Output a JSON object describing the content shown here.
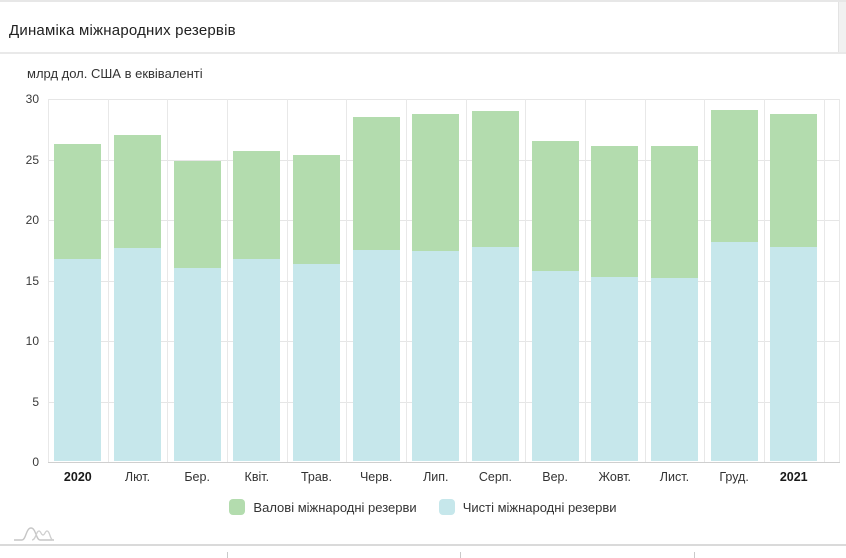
{
  "header": {
    "title": "Динаміка міжнародних резервів"
  },
  "chart_data": {
    "type": "bar",
    "title": "Динаміка міжнародних резервів",
    "ylabel": "млрд дол. США в еквіваленті",
    "xlabel": "",
    "ylim": [
      0,
      30
    ],
    "yticks": [
      30,
      25,
      20,
      15,
      10,
      5,
      0
    ],
    "grid": true,
    "legend_position": "bottom-center",
    "categories": [
      "2020",
      "Лют.",
      "Бер.",
      "Квіт.",
      "Трав.",
      "Черв.",
      "Лип.",
      "Серп.",
      "Вер.",
      "Жовт.",
      "Лист.",
      "Груд.",
      "2021"
    ],
    "bold_categories": [
      "2020",
      "2021"
    ],
    "series": [
      {
        "name": "Валові міжнародні резерви",
        "color": "#b3dcae",
        "values": [
          26.3,
          27.0,
          24.9,
          25.7,
          25.4,
          28.5,
          28.8,
          29.0,
          26.5,
          26.1,
          26.1,
          29.1,
          28.8
        ]
      },
      {
        "name": "Чисті міжнародні резерви",
        "color": "#c6e7eb",
        "values": [
          16.8,
          17.7,
          16.0,
          16.8,
          16.4,
          17.5,
          17.4,
          17.8,
          15.8,
          15.3,
          15.2,
          18.2,
          17.8
        ]
      }
    ]
  },
  "colors": {
    "grid": "#e6e6e6",
    "axis_line": "#cfcfcf",
    "text": "#333333"
  }
}
